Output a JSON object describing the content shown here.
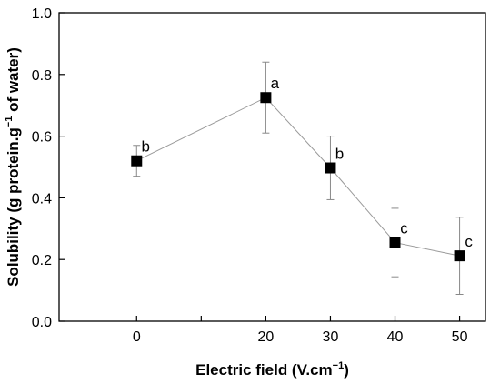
{
  "chart_data": {
    "type": "line",
    "title": "",
    "xlabel_main": "Electric field (V.cm",
    "xlabel_sup": "−1",
    "xlabel_end": ")",
    "ylabel_main": "Solubility (g protein.g",
    "ylabel_sup": "−1",
    "ylabel_end": " of water)",
    "xlim": [
      -12,
      54
    ],
    "ylim": [
      0,
      1.0
    ],
    "xticks": [
      0,
      10,
      20,
      30,
      40,
      50
    ],
    "xtick_labels": [
      "0",
      "",
      "20",
      "30",
      "40",
      "50"
    ],
    "yticks": [
      0,
      0.2,
      0.4,
      0.6,
      0.8,
      1.0
    ],
    "ytick_labels": [
      "0.0",
      "0.2",
      "0.4",
      "0.6",
      "0.8",
      "1.0"
    ],
    "grid": false,
    "series": [
      {
        "x": [
          0,
          20,
          30,
          40,
          50
        ],
        "y": [
          0.52,
          0.725,
          0.497,
          0.255,
          0.212
        ],
        "error": [
          0.05,
          0.115,
          0.103,
          0.111,
          0.125
        ],
        "labels": [
          "b",
          "a",
          "b",
          "c",
          "c"
        ],
        "line_color": "#9a9a9a",
        "marker_color": "#000000",
        "marker": "square"
      }
    ]
  }
}
